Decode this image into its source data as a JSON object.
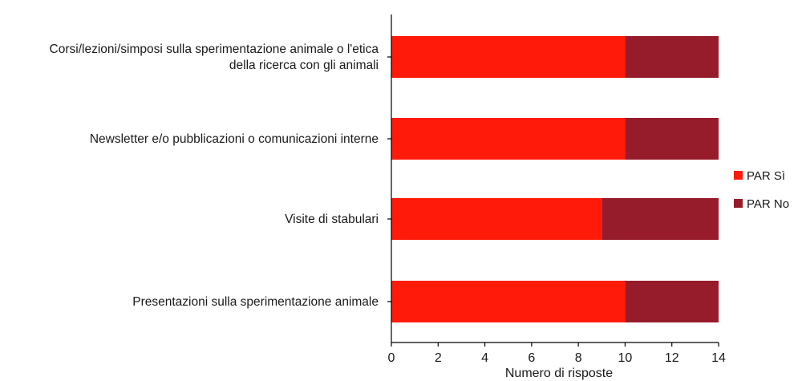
{
  "chart_data": {
    "type": "bar",
    "orientation": "horizontal",
    "stacked": true,
    "categories": [
      "Corsi/lezioni/simposi sulla sperimentazione animale o l'etica della ricerca con gli animali",
      "Newsletter e/o pubblicazioni o comunicazioni interne",
      "Visite di stabulari",
      "Presentazioni sulla sperimentazione animale"
    ],
    "category_lines": [
      [
        "Corsi/lezioni/simposi sulla sperimentazione animale o l'etica",
        "della ricerca con gli animali"
      ],
      [
        "Newsletter e/o pubblicazioni o comunicazioni interne"
      ],
      [
        "Visite di stabulari"
      ],
      [
        "Presentazioni sulla sperimentazione animale"
      ]
    ],
    "series": [
      {
        "name": "PAR Sì",
        "values": [
          10,
          10,
          9,
          10
        ],
        "color": "#FF1A0A"
      },
      {
        "name": "PAR No",
        "values": [
          4,
          4,
          5,
          4
        ],
        "color": "#961B2B"
      }
    ],
    "xlabel": "Numero di risposte",
    "ylabel": "",
    "xlim": [
      0,
      14
    ],
    "xticks": [
      0,
      2,
      4,
      6,
      8,
      10,
      12,
      14
    ],
    "grid": false,
    "legend_position": "right"
  }
}
